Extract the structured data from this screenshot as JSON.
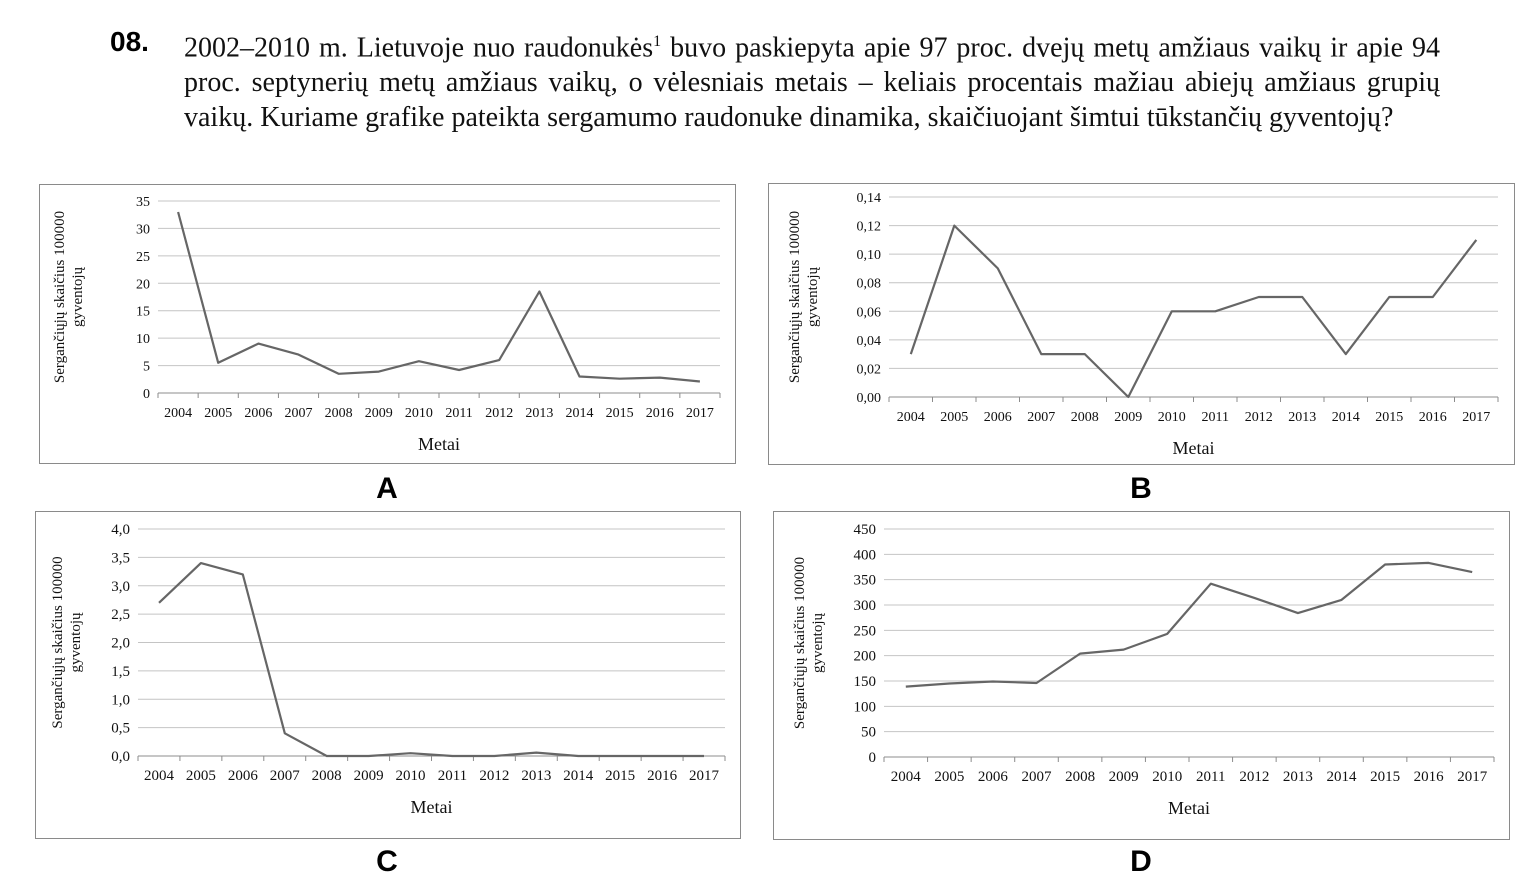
{
  "question": {
    "number": "08.",
    "text_before_sup": "2002–2010 m. Lietuvoje nuo raudonukės",
    "sup": "1",
    "text_after_sup": " buvo paskiepyta apie 97 proc. dvejų metų amžiaus vaikų ir apie 94 proc. septynerių metų amžiaus vaikų, o vėlesniais metais – keliais procentais mažiau abiejų amžiaus grupių vaikų. Kuriame grafike pateikta sergamumo raudonuke dinamika, skaičiuojant šimtui tūkstančių gyventojų?"
  },
  "chart_data": [
    {
      "type": "line",
      "letter": "A",
      "ylabel_line1": "Sergančiųjų skaičius 100000",
      "ylabel_line2": "gyventojų",
      "xlabel": "Metai",
      "x": [
        "2004",
        "2005",
        "2006",
        "2007",
        "2008",
        "2009",
        "2010",
        "2011",
        "2012",
        "2013",
        "2014",
        "2015",
        "2016",
        "2017"
      ],
      "values": [
        33,
        5.5,
        9,
        7,
        3.5,
        3.9,
        5.8,
        4.2,
        6,
        18.5,
        3,
        2.6,
        2.8,
        2.1
      ],
      "ylim": [
        0,
        35
      ],
      "yticks": [
        "0",
        "5",
        "10",
        "15",
        "20",
        "25",
        "30",
        "35"
      ],
      "line_color": "#666666",
      "grid": true
    },
    {
      "type": "line",
      "letter": "B",
      "ylabel_line1": "Sergančiųjų skaičius 100000",
      "ylabel_line2": "gyventojų",
      "xlabel": "Metai",
      "x": [
        "2004",
        "2005",
        "2006",
        "2007",
        "2008",
        "2009",
        "2010",
        "2011",
        "2012",
        "2013",
        "2014",
        "2015",
        "2016",
        "2017"
      ],
      "values": [
        0.03,
        0.12,
        0.09,
        0.03,
        0.03,
        0.0,
        0.06,
        0.06,
        0.07,
        0.07,
        0.03,
        0.07,
        0.07,
        0.11
      ],
      "ylim": [
        0,
        0.14
      ],
      "yticks": [
        "0,00",
        "0,02",
        "0,04",
        "0,06",
        "0,08",
        "0,10",
        "0,12",
        "0,14"
      ],
      "line_color": "#666666",
      "grid": true
    },
    {
      "type": "line",
      "letter": "C",
      "ylabel_line1": "Sergančiųjų skaičius 100000",
      "ylabel_line2": "gyventojų",
      "xlabel": "Metai",
      "x": [
        "2004",
        "2005",
        "2006",
        "2007",
        "2008",
        "2009",
        "2010",
        "2011",
        "2012",
        "2013",
        "2014",
        "2015",
        "2016",
        "2017"
      ],
      "values": [
        2.7,
        3.4,
        3.2,
        0.4,
        0.0,
        0.0,
        0.05,
        0.0,
        0.0,
        0.06,
        0.0,
        0.0,
        0.0,
        0.0
      ],
      "ylim": [
        0,
        4
      ],
      "yticks": [
        "0,0",
        "0,5",
        "1,0",
        "1,5",
        "2,0",
        "2,5",
        "3,0",
        "3,5",
        "4,0"
      ],
      "line_color": "#666666",
      "grid": true
    },
    {
      "type": "line",
      "letter": "D",
      "ylabel_line1": "Sergančiųjų skaičius 100000",
      "ylabel_line2": "gyventojų",
      "xlabel": "Metai",
      "x": [
        "2004",
        "2005",
        "2006",
        "2007",
        "2008",
        "2009",
        "2010",
        "2011",
        "2012",
        "2013",
        "2014",
        "2015",
        "2016",
        "2017"
      ],
      "values": [
        139,
        145,
        149,
        146,
        204,
        212,
        243,
        342,
        314,
        284,
        310,
        380,
        383,
        365
      ],
      "ylim": [
        0,
        450
      ],
      "yticks": [
        "0",
        "50",
        "100",
        "150",
        "200",
        "250",
        "300",
        "350",
        "400",
        "450"
      ],
      "line_color": "#666666",
      "grid": true
    }
  ]
}
